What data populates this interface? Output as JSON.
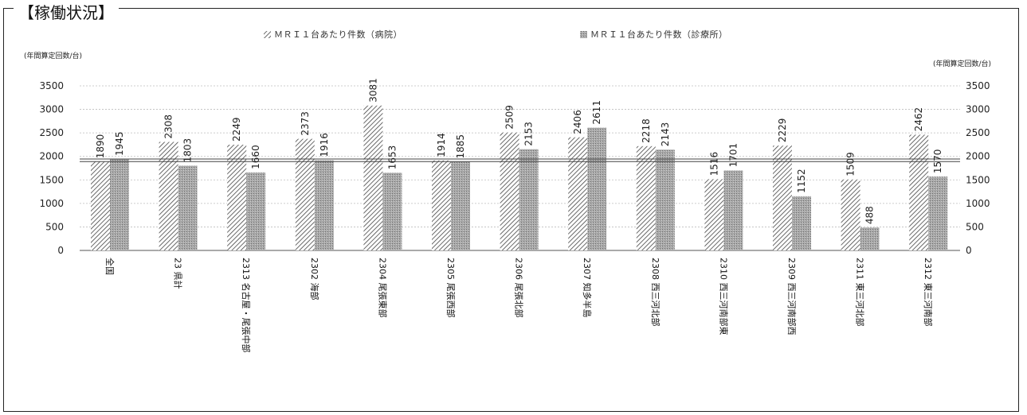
{
  "heading": "【稼働状況】",
  "chart_data": {
    "type": "bar",
    "title": "",
    "y_unit_left": "(年間算定回数/台)",
    "y_unit_right": "(年間算定回数/台)",
    "ylim": [
      0,
      3500
    ],
    "yticks": [
      0,
      500,
      1000,
      1500,
      2000,
      2500,
      3000,
      3500
    ],
    "grid": true,
    "legend_position": "top",
    "categories": [
      "全国",
      "23 県計",
      "2313 名古屋・尾張中部",
      "2302 海部",
      "2304 尾張東部",
      "2305 尾張西部",
      "2306 尾張北部",
      "2307 知多半島",
      "2308 西三河北部",
      "2310 西三河南部東",
      "2309 西三河南部西",
      "2311 東三河北部",
      "2312 東三河南部"
    ],
    "series": [
      {
        "name": "ＭＲＩ１台あたり件数（病院）",
        "pattern": "hatch",
        "values": [
          1890,
          2308,
          2249,
          2373,
          3081,
          1914,
          2509,
          2406,
          2218,
          1516,
          2229,
          1509,
          2462
        ]
      },
      {
        "name": "ＭＲＩ１台あたり件数（診療所）",
        "pattern": "dots",
        "values": [
          1945,
          1803,
          1660,
          1916,
          1653,
          1885,
          2153,
          2611,
          2143,
          1701,
          1152,
          488,
          1570
        ]
      }
    ],
    "reference_lines": [
      1945,
      1890
    ]
  }
}
